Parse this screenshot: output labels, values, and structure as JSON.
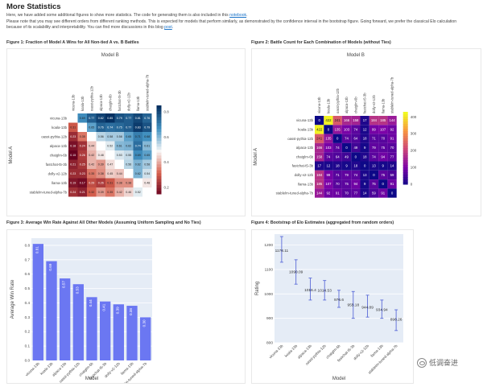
{
  "page": {
    "title": "More Statistics",
    "intro_line1_before": "Here, we have added some additional figures to show more statistics. The code for generating them is also included in this ",
    "intro_line1_link": "notebook",
    "intro_line1_after": ".",
    "intro_line2": "Please note that you may see different orders from different ranking methods. This is expected for models that perform similarly, as demonstrated by the confidence interval in the bootstrap figure. Going forward, we prefer the classical Elo calculation",
    "intro_line3_before": "because of its scalability and interpretability. You can find more discussions in this blog ",
    "intro_line3_link": "post",
    "intro_line3_after": ".",
    "watermark": "低调奋进"
  },
  "figures": {
    "fig1_title": "Figure 1: Fraction of Model A Wins for All Non-tied A vs. B Battles",
    "fig2_title": "Figure 2: Battle Count for Each Combination of Models (without Ties)",
    "fig3_title": "Figure 3: Average Win Rate Against All Other Models (Assuming Uniform Sampling and No Ties)",
    "fig4_title": "Figure 4: Bootstrap of Elo Estimates (aggregated from random orders)"
  },
  "chart_data": [
    {
      "type": "heatmap",
      "id": "fig1",
      "xlabel": "Model B",
      "ylabel": "Model A",
      "models": [
        "vicuna-13b",
        "koala-13b",
        "oasst-pythia-12b",
        "alpaca-13b",
        "chatglm-6b",
        "fastchat-t5-3b",
        "dolly-v2-12b",
        "llama-13b",
        "stablelm-tuned-alpha-7b"
      ],
      "values": [
        [
          null,
          0.69,
          0.77,
          0.82,
          0.85,
          0.79,
          0.77,
          0.81,
          0.76
        ],
        [
          0.31,
          null,
          0.65,
          0.76,
          0.74,
          0.75,
          0.77,
          0.83,
          0.79
        ],
        [
          0.23,
          0.35,
          null,
          0.56,
          0.58,
          0.58,
          0.65,
          0.71,
          0.68
        ],
        [
          0.18,
          0.24,
          0.44,
          null,
          0.52,
          0.61,
          0.62,
          0.74,
          0.61
        ],
        [
          0.15,
          0.26,
          0.42,
          0.48,
          null,
          0.53,
          0.55,
          0.69,
          0.65
        ],
        [
          0.21,
          0.25,
          0.42,
          0.39,
          0.47,
          null,
          0.56,
          0.62,
          0.58
        ],
        [
          0.23,
          0.23,
          0.35,
          0.38,
          0.45,
          0.44,
          null,
          0.62,
          0.54
        ],
        [
          0.19,
          0.17,
          0.29,
          0.26,
          0.31,
          0.38,
          0.38,
          null,
          0.48
        ],
        [
          0.24,
          0.21,
          0.32,
          0.39,
          0.35,
          0.42,
          0.46,
          0.52,
          null
        ]
      ],
      "colorbar_ticks": [
        0.8,
        0.6,
        0.4,
        0.2
      ],
      "colorscale": "red-white-blue"
    },
    {
      "type": "heatmap",
      "id": "fig2",
      "xlabel": "Model B",
      "ylabel": "Model A",
      "models": [
        "vicuna-13b",
        "koala-13b",
        "oasst-pythia-12b",
        "alpaca-13b",
        "chatglm-6b",
        "fastchat-t5-3b",
        "dolly-v2-12b",
        "llama-13b",
        "stablelm-tuned-alpha-7b"
      ],
      "values": [
        [
          0,
          422,
          241,
          166,
          158,
          17,
          184,
          185,
          144
        ],
        [
          422,
          0,
          135,
          103,
          74,
          12,
          99,
          107,
          92
        ],
        [
          241,
          135,
          0,
          74,
          64,
          18,
          71,
          70,
          91
        ],
        [
          166,
          103,
          74,
          0,
          49,
          9,
          79,
          75,
          70
        ],
        [
          158,
          74,
          64,
          49,
          0,
          18,
          74,
          94,
          77
        ],
        [
          17,
          12,
          18,
          9,
          18,
          0,
          13,
          9,
          14
        ],
        [
          184,
          99,
          71,
          79,
          74,
          13,
          0,
          75,
          59
        ],
        [
          185,
          107,
          70,
          75,
          94,
          9,
          75,
          0,
          91
        ],
        [
          144,
          92,
          91,
          70,
          77,
          14,
          59,
          91,
          0
        ]
      ],
      "colorbar_ticks": [
        400,
        300,
        200,
        100,
        0
      ],
      "colorscale": "plasma"
    },
    {
      "type": "bar",
      "id": "fig3",
      "categories": [
        "vicuna-13b",
        "koala-13b",
        "alpaca-13b",
        "oasst-pythia-12b",
        "chatglm-6b",
        "fastchat-t5-3b",
        "dolly-v2-12b",
        "llama-13b",
        "stablelm-tuned-alpha-7b"
      ],
      "values": [
        0.81,
        0.69,
        0.57,
        0.53,
        0.44,
        0.41,
        0.39,
        0.38,
        0.3
      ],
      "labels": [
        "0.81",
        "0.69",
        "0.57",
        "0.53",
        "0.44",
        "0.41",
        "0.39",
        "0.38",
        "0.30"
      ],
      "xlabel": "Model",
      "ylabel": "Average Win Rate",
      "yticks": [
        0,
        0.1,
        0.2,
        0.3,
        0.4,
        0.5,
        0.6,
        0.7,
        0.8
      ],
      "ylim": [
        0,
        0.85
      ],
      "color": "#6b77f2"
    },
    {
      "type": "scatter",
      "id": "fig4",
      "categories": [
        "vicuna-13b",
        "koala-13b",
        "alpaca-13b",
        "oasst-pythia-12b",
        "chatglm-6b",
        "fastchat-t5-3b",
        "dolly-v2-12b",
        "llama-13b",
        "stablelm-tuned-alpha-7b"
      ],
      "values": [
        1178.11,
        1090.09,
        1016.4,
        1014.53,
        976.6,
        955.18,
        944.89,
        934.94,
        896.26
      ],
      "labels": [
        "1178.11",
        "1090.09",
        "1016.4",
        "1014.53",
        "976.6",
        "955.18",
        "944.89",
        "934.94",
        "896.26"
      ],
      "err_low": [
        1130,
        1040,
        975,
        975,
        945,
        900,
        905,
        900,
        850
      ],
      "err_high": [
        1235,
        1140,
        1065,
        1055,
        1015,
        1010,
        995,
        975,
        935
      ],
      "xlabel": "Model",
      "ylabel": "Rating",
      "yticks": [
        800,
        900,
        1000,
        1100,
        1200
      ],
      "ylim": [
        800,
        1245
      ],
      "color": "#5b6bd8"
    }
  ]
}
